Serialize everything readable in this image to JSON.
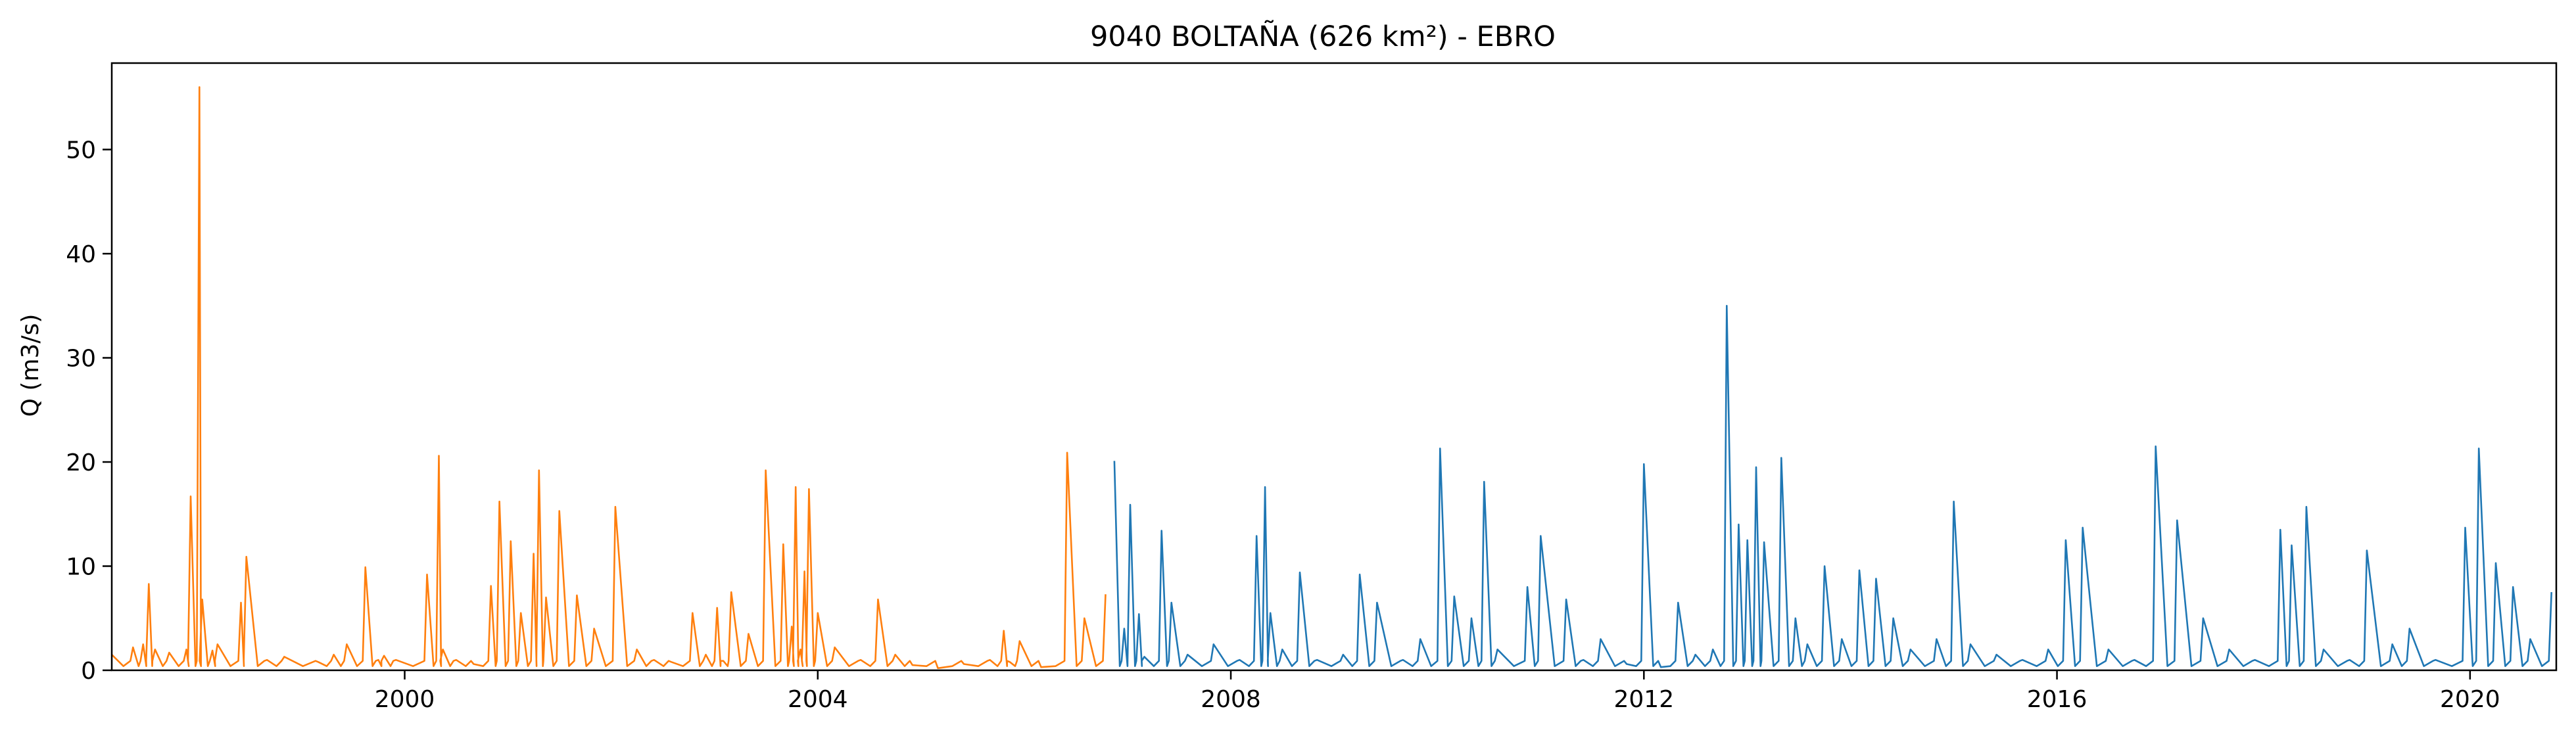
{
  "chart_data": {
    "type": "line",
    "title": "9040 BOLTAÑA (626 km²) - EBRO",
    "xlabel": "",
    "ylabel": "Q (m3/s)",
    "xlim": [
      "1997-03-01",
      "2020-11-01"
    ],
    "ylim": [
      0,
      58.3
    ],
    "x_ticks": [
      "2000",
      "2004",
      "2008",
      "2012",
      "2016",
      "2020"
    ],
    "y_ticks": [
      0,
      10,
      20,
      30,
      40,
      50
    ],
    "grid": false,
    "colors": {
      "series_1": "#ff7f0e",
      "series_2": "#1f77b4"
    },
    "series": [
      {
        "color": "#ff7f0e",
        "x": [
          "1997-03-01",
          "1997-05-15",
          "1997-06-20",
          "1997-07-10",
          "1997-08-01",
          "1997-09-20",
          "1997-11-20",
          "1997-12-05",
          "1998-01-05",
          "1998-01-15",
          "1998-02-20",
          "1998-03-10",
          "1998-06-01",
          "1998-06-20",
          "1998-09-01",
          "1998-11-01",
          "1999-03-01",
          "1999-04-25",
          "1999-06-10",
          "1999-08-15",
          "1999-09-30",
          "1999-10-20",
          "1999-12-01",
          "2000-03-20",
          "2000-05-01",
          "2000-05-15",
          "2000-07-01",
          "2000-09-01",
          "2000-11-01",
          "2000-12-01",
          "2001-01-10",
          "2001-02-15",
          "2001-04-01",
          "2001-04-20",
          "2001-05-15",
          "2001-07-01",
          "2001-09-01",
          "2001-11-01",
          "2002-01-15",
          "2002-04-01",
          "2002-06-01",
          "2002-08-01",
          "2002-10-15",
          "2002-12-01",
          "2003-01-10",
          "2003-02-01",
          "2003-03-01",
          "2003-05-01",
          "2003-07-01",
          "2003-09-01",
          "2003-10-01",
          "2003-10-15",
          "2003-11-01",
          "2003-11-15",
          "2003-12-01",
          "2004-01-01",
          "2004-03-01",
          "2004-06-01",
          "2004-08-01",
          "2004-10-01",
          "2004-12-01",
          "2005-03-01",
          "2005-06-01",
          "2005-09-01",
          "2005-10-20",
          "2005-11-10",
          "2005-12-15",
          "2006-03-01",
          "2006-06-01",
          "2006-08-01",
          "2006-10-15"
        ],
        "y": [
          1.5,
          2.2,
          2.5,
          8.3,
          2,
          1.7,
          2,
          16.7,
          56,
          6.8,
          1.9,
          2.5,
          6.5,
          10.9,
          1,
          1.3,
          0.8,
          1.5,
          2.5,
          9.9,
          1,
          1.4,
          1,
          9.2,
          20.6,
          2,
          1,
          0.6,
          8.1,
          16.2,
          12.4,
          5.5,
          11.2,
          19.2,
          7,
          15.3,
          7.2,
          4,
          15.7,
          2,
          1,
          0.8,
          5.5,
          1.5,
          6,
          0.9,
          7.5,
          3.5,
          19.2,
          12.1,
          4.2,
          17.6,
          2,
          9.5,
          17.4,
          5.5,
          2.2,
          1,
          6.8,
          1.5,
          0.5,
          0.2,
          0.6,
          1,
          3.8,
          0.8,
          2.8,
          0.3,
          20.9,
          5,
          7.3
        ]
      },
      {
        "color": "#1f77b4",
        "x": [
          "2006-11-15",
          "2006-12-20",
          "2007-01-10",
          "2007-02-10",
          "2007-03-01",
          "2007-05-01",
          "2007-06-05",
          "2007-08-01",
          "2007-11-01",
          "2008-02-01",
          "2008-04-01",
          "2008-05-01",
          "2008-05-20",
          "2008-07-01",
          "2008-09-01",
          "2008-11-01",
          "2009-02-01",
          "2009-04-01",
          "2009-06-01",
          "2009-09-01",
          "2009-11-01",
          "2010-01-10",
          "2010-03-01",
          "2010-05-01",
          "2010-06-15",
          "2010-08-01",
          "2010-11-15",
          "2011-01-01",
          "2011-04-01",
          "2011-06-01",
          "2011-08-01",
          "2011-11-01",
          "2012-01-01",
          "2012-03-01",
          "2012-05-01",
          "2012-07-01",
          "2012-09-01",
          "2012-10-20",
          "2012-12-01",
          "2013-01-01",
          "2013-02-01",
          "2013-03-01",
          "2013-05-01",
          "2013-06-20",
          "2013-08-01",
          "2013-10-01",
          "2013-12-01",
          "2014-02-01",
          "2014-04-01",
          "2014-06-01",
          "2014-08-01",
          "2014-11-01",
          "2015-01-01",
          "2015-03-01",
          "2015-06-01",
          "2015-09-01",
          "2015-12-01",
          "2016-02-01",
          "2016-04-01",
          "2016-07-01",
          "2016-10-01",
          "2016-12-15",
          "2017-03-01",
          "2017-06-01",
          "2017-09-01",
          "2017-12-01",
          "2018-03-01",
          "2018-04-10",
          "2018-06-01",
          "2018-08-01",
          "2018-11-01",
          "2019-01-01",
          "2019-04-01",
          "2019-06-01",
          "2019-09-01",
          "2019-12-15",
          "2020-02-01",
          "2020-04-01",
          "2020-06-01",
          "2020-08-01",
          "2020-10-15"
        ],
        "y": [
          20.1,
          4,
          15.9,
          5.4,
          1.3,
          13.4,
          6.5,
          1.5,
          2.5,
          1,
          12.9,
          17.6,
          5.5,
          2,
          9.4,
          1,
          1.5,
          9.2,
          6.5,
          1,
          3,
          21.3,
          7.1,
          5,
          18.1,
          2,
          8,
          12.9,
          6.8,
          1,
          3,
          0.6,
          19.8,
          0.3,
          6.5,
          1.5,
          2,
          35,
          14,
          12.5,
          19.5,
          12.3,
          20.4,
          5,
          2.5,
          10,
          3,
          9.6,
          8.8,
          5,
          2,
          3,
          16.2,
          2.5,
          1.5,
          1,
          2,
          12.5,
          13.7,
          2,
          1,
          21.5,
          14.4,
          5,
          2,
          1,
          13.5,
          12,
          15.7,
          2,
          1,
          11.5,
          2.5,
          4,
          1,
          13.7,
          21.3,
          10.3,
          8,
          3,
          7.5
        ]
      }
    ]
  }
}
